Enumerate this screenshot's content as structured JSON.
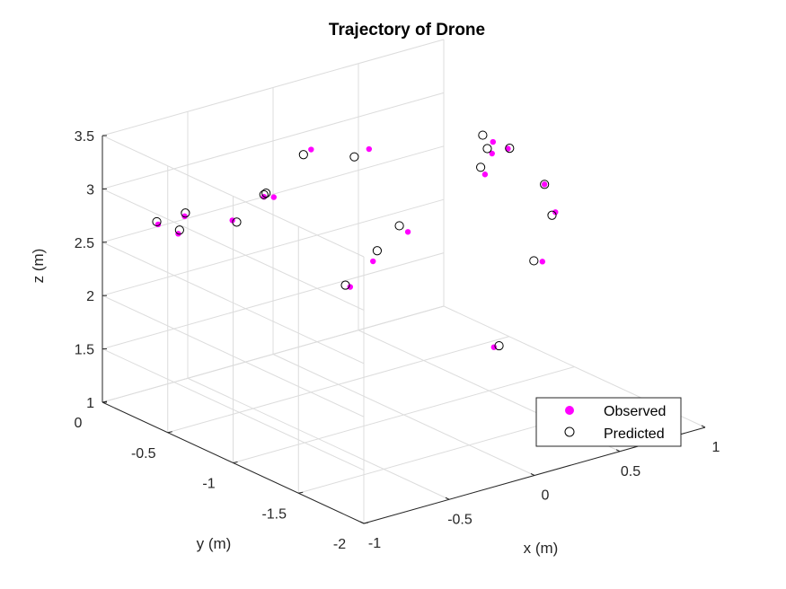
{
  "chart_data": {
    "type": "scatter",
    "title": "Trajectory of Drone",
    "xlabel": "x (m)",
    "ylabel": "y (m)",
    "zlabel": "z (m)",
    "xlim": [
      -1,
      1
    ],
    "ylim": [
      -2,
      0
    ],
    "zlim": [
      1,
      3.5
    ],
    "xticks": [
      -1,
      -0.5,
      0,
      0.5,
      1
    ],
    "xtick_labels": [
      "-1",
      "-0.5",
      "0",
      "0.5",
      "1"
    ],
    "yticks": [
      0,
      -0.5,
      -1,
      -1.5,
      -2
    ],
    "ytick_labels": [
      "0",
      "-0.5",
      "-1",
      "-1.5",
      "-2"
    ],
    "zticks": [
      1,
      1.5,
      2,
      2.5,
      3,
      3.5
    ],
    "ztick_labels": [
      "1",
      "1.5",
      "2",
      "2.5",
      "3",
      "3.5"
    ],
    "grid": true,
    "legend_position": "bottom-right",
    "colors": {
      "observed": "#ff00ff",
      "predicted": "#000000"
    },
    "series": [
      {
        "name": "Observed",
        "marker": "filled-circle",
        "points": [
          [
            -0.23,
            -1.99,
            2.3
          ],
          [
            0.1,
            -1.93,
            2.92
          ],
          [
            0.36,
            -1.69,
            3.13
          ],
          [
            0.48,
            -1.45,
            3.2
          ],
          [
            0.61,
            -1.0,
            3.22
          ],
          [
            0.76,
            -0.69,
            3.04
          ],
          [
            0.9,
            -0.5,
            2.76
          ],
          [
            0.92,
            -0.42,
            2.51
          ],
          [
            0.43,
            -0.47,
            2.22
          ],
          [
            0.08,
            -0.66,
            2.21
          ],
          [
            -0.23,
            -0.89,
            2.24
          ],
          [
            -0.79,
            -0.72,
            3.02
          ],
          [
            -0.84,
            -0.42,
            2.91
          ],
          [
            -0.85,
            -0.23,
            2.73
          ],
          [
            -0.64,
            -0.11,
            2.48
          ],
          [
            -0.23,
            -0.23,
            2.71
          ],
          [
            -0.44,
            -0.58,
            3.0
          ],
          [
            -0.03,
            -0.33,
            3.12
          ],
          [
            0.21,
            -0.46,
            3.09
          ]
        ]
      },
      {
        "name": "Predicted",
        "marker": "open-circle",
        "points": [
          [
            -0.2,
            -1.99,
            2.3
          ],
          [
            0.05,
            -1.93,
            2.95
          ],
          [
            0.34,
            -1.69,
            3.11
          ],
          [
            0.48,
            -1.45,
            3.2
          ],
          [
            0.62,
            -1.0,
            3.22
          ],
          [
            0.7,
            -0.69,
            3.13
          ],
          [
            0.88,
            -0.49,
            2.81
          ],
          [
            0.91,
            -0.4,
            2.57
          ],
          [
            0.38,
            -0.47,
            2.3
          ],
          [
            0.12,
            -0.64,
            2.28
          ],
          [
            -0.25,
            -0.88,
            2.26
          ],
          [
            -0.78,
            -0.74,
            3.01
          ],
          [
            -0.82,
            -0.4,
            2.92
          ],
          [
            -0.85,
            -0.22,
            2.75
          ],
          [
            -0.64,
            -0.12,
            2.52
          ],
          [
            -0.23,
            -0.23,
            2.73
          ],
          [
            -0.47,
            -0.56,
            3.04
          ],
          [
            -0.09,
            -0.35,
            3.11
          ],
          [
            0.07,
            -0.53,
            3.12
          ]
        ]
      }
    ]
  }
}
